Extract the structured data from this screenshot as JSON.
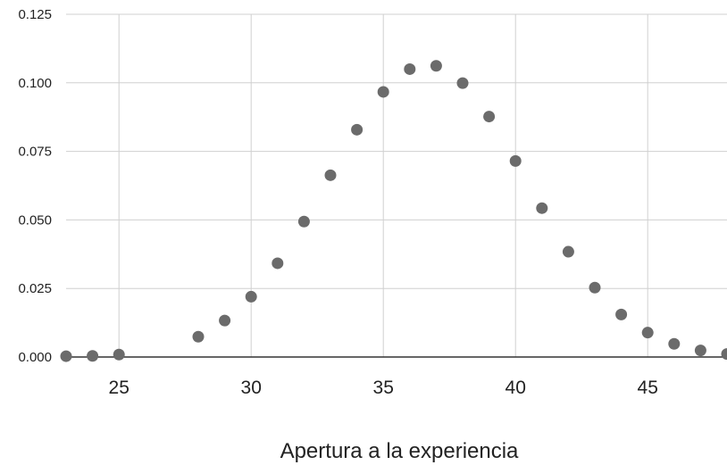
{
  "chart_data": {
    "type": "scatter",
    "xlabel": "Apertura a la experiencia",
    "ylabel": "",
    "xlim": [
      23,
      48
    ],
    "ylim": [
      0,
      0.125
    ],
    "grid": true,
    "x_ticks": [
      25,
      30,
      35,
      40,
      45
    ],
    "x_tick_labels": [
      "25",
      "30",
      "35",
      "40",
      "45"
    ],
    "y_ticks": [
      0,
      0.025,
      0.05,
      0.075,
      0.1,
      0.125
    ],
    "y_tick_labels": [
      "0.000",
      "0.025",
      "0.050",
      "0.075",
      "0.100",
      "0.125"
    ],
    "colors": {
      "points": "#6b6b6b",
      "grid": "#d0d0d0",
      "axis": "#333333"
    },
    "series": [
      {
        "x": [
          23,
          24,
          25,
          28,
          29,
          30,
          31,
          32,
          33,
          34,
          35,
          36,
          37,
          38,
          39,
          40,
          41,
          42,
          43,
          44,
          45,
          46,
          47,
          48
        ],
        "y": [
          0.0003,
          0.0004,
          0.0009,
          0.0074,
          0.0133,
          0.022,
          0.0342,
          0.0494,
          0.0663,
          0.0829,
          0.0967,
          0.105,
          0.1062,
          0.0999,
          0.0877,
          0.0715,
          0.0543,
          0.0384,
          0.0253,
          0.0155,
          0.0089,
          0.0048,
          0.0024,
          0.0011
        ]
      }
    ]
  }
}
